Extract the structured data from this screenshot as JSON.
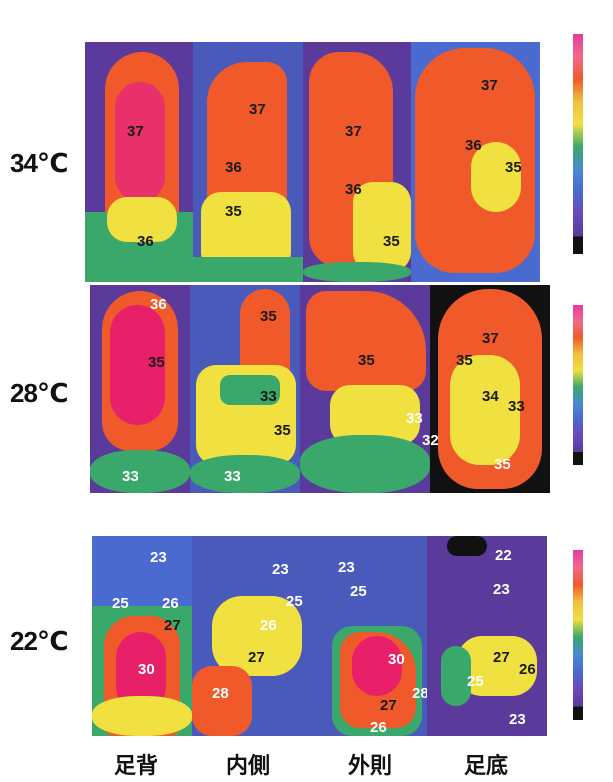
{
  "rows": [
    {
      "label": "34℃",
      "values": {
        "dorsal": [
          "37",
          "36"
        ],
        "medial": [
          "37",
          "36",
          "35"
        ],
        "lateral": [
          "37",
          "36",
          "35"
        ],
        "plantar": [
          "37",
          "36",
          "35"
        ]
      }
    },
    {
      "label": "28℃",
      "values": {
        "dorsal": [
          "36",
          "35",
          "33"
        ],
        "medial": [
          "35",
          "33",
          "35",
          "33"
        ],
        "lateral": [
          "35",
          "33"
        ],
        "plantar": [
          "37",
          "35",
          "34",
          "33",
          "32",
          "35"
        ]
      }
    },
    {
      "label": "22℃",
      "values": {
        "dorsal": [
          "23",
          "25",
          "26",
          "27",
          "30"
        ],
        "medial": [
          "23",
          "25",
          "26",
          "27",
          "28"
        ],
        "lateral": [
          "23",
          "25",
          "30",
          "28",
          "27",
          "26"
        ],
        "plantar": [
          "22",
          "23",
          "27",
          "26",
          "25",
          "23"
        ]
      }
    }
  ],
  "views": [
    "足背",
    "内側",
    "外則",
    "足底"
  ],
  "colors": {
    "background": "#5a3a9a",
    "hot_core": "#e8206a",
    "hot": "#f05a2a",
    "warm": "#f0e040",
    "mid": "#3aa86a",
    "cool": "#4a6ad0"
  }
}
